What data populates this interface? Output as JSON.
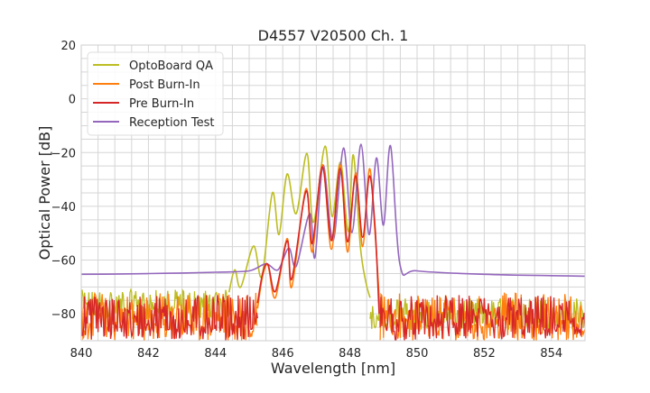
{
  "chart_data": {
    "type": "line",
    "title": "D4557 V20500 Ch. 1",
    "xlabel": "Wavelength [nm]",
    "ylabel": "Optical Power [dB]",
    "xlim": [
      840,
      855
    ],
    "ylim": [
      -90,
      20
    ],
    "xticks": [
      "840",
      "842",
      "844",
      "846",
      "848",
      "850",
      "852",
      "854"
    ],
    "yticks": [
      "20",
      "0",
      "−20",
      "−40",
      "−60",
      "−80"
    ],
    "grid": "major and minor",
    "legend_position": "top-left",
    "series": [
      {
        "name": "OptoBoard QA",
        "color": "#bcbd22",
        "noise": [
          {
            "x": [
              840,
              844.4
            ],
            "y": [
              -82,
              -71
            ]
          },
          {
            "x": [
              848.6,
              855
            ],
            "y": [
              -86,
              -74
            ]
          }
        ],
        "points": [
          [
            844.4,
            -72
          ],
          [
            844.57,
            -63.6
          ],
          [
            844.75,
            -70
          ],
          [
            845.13,
            -54.8
          ],
          [
            845.38,
            -66
          ],
          [
            845.69,
            -35
          ],
          [
            845.89,
            -50.5
          ],
          [
            846.13,
            -28
          ],
          [
            846.4,
            -42.7
          ],
          [
            846.72,
            -20.3
          ],
          [
            846.91,
            -46
          ],
          [
            847.26,
            -17.6
          ],
          [
            847.47,
            -43.8
          ],
          [
            847.72,
            -23.6
          ],
          [
            847.95,
            -49.4
          ],
          [
            848.1,
            -20.8
          ],
          [
            848.31,
            -54.8
          ],
          [
            848.47,
            -68
          ],
          [
            848.6,
            -74
          ]
        ]
      },
      {
        "name": "Reception Test",
        "color": "#9467bd",
        "noise": [],
        "points": [
          [
            840,
            -65.3
          ],
          [
            841,
            -65.2
          ],
          [
            842,
            -65
          ],
          [
            843,
            -64.8
          ],
          [
            844,
            -64.5
          ],
          [
            845,
            -64
          ],
          [
            845.5,
            -61.4
          ],
          [
            845.86,
            -63.6
          ],
          [
            846.18,
            -55.5
          ],
          [
            846.4,
            -62.3
          ],
          [
            846.8,
            -42.7
          ],
          [
            846.96,
            -59
          ],
          [
            847.2,
            -24.7
          ],
          [
            847.5,
            -52.7
          ],
          [
            847.81,
            -18.3
          ],
          [
            848.06,
            -49.8
          ],
          [
            848.33,
            -16.9
          ],
          [
            848.57,
            -50.5
          ],
          [
            848.79,
            -22
          ],
          [
            849.0,
            -47
          ],
          [
            849.21,
            -17.5
          ],
          [
            849.49,
            -61.6
          ],
          [
            850,
            -64
          ],
          [
            852,
            -65.3
          ],
          [
            854,
            -65.8
          ],
          [
            855,
            -66
          ]
        ]
      },
      {
        "name": "Post Burn-In",
        "color": "#ff7f0e",
        "noise": [
          {
            "x": [
              840,
              845.25
            ],
            "y": [
              -90,
              -72
            ]
          },
          {
            "x": [
              848.9,
              855
            ],
            "y": [
              -90,
              -72
            ]
          }
        ],
        "points": [
          [
            845.25,
            -78
          ],
          [
            845.4,
            -66
          ],
          [
            845.56,
            -62
          ],
          [
            845.78,
            -74
          ],
          [
            846.13,
            -52
          ],
          [
            846.27,
            -70
          ],
          [
            846.69,
            -33.5
          ],
          [
            846.88,
            -57
          ],
          [
            847.18,
            -24.5
          ],
          [
            847.45,
            -56
          ],
          [
            847.71,
            -24.5
          ],
          [
            847.93,
            -57
          ],
          [
            848.17,
            -27.5
          ],
          [
            848.38,
            -55
          ],
          [
            848.58,
            -26
          ],
          [
            848.75,
            -50
          ],
          [
            848.9,
            -80
          ]
        ]
      },
      {
        "name": "Pre Burn-In",
        "color": "#d62728",
        "noise": [
          {
            "x": [
              840,
              845.25
            ],
            "y": [
              -90,
              -73
            ]
          },
          {
            "x": [
              848.9,
              855
            ],
            "y": [
              -90,
              -73
            ]
          }
        ],
        "points": [
          [
            845.25,
            -76
          ],
          [
            845.4,
            -65
          ],
          [
            845.56,
            -61.6
          ],
          [
            845.78,
            -71.7
          ],
          [
            846.13,
            -52.8
          ],
          [
            846.27,
            -67
          ],
          [
            846.69,
            -34.4
          ],
          [
            846.88,
            -53.8
          ],
          [
            847.18,
            -25.3
          ],
          [
            847.45,
            -52.8
          ],
          [
            847.71,
            -25.9
          ],
          [
            847.93,
            -53.2
          ],
          [
            848.17,
            -28.7
          ],
          [
            848.38,
            -51.5
          ],
          [
            848.58,
            -28.7
          ],
          [
            848.75,
            -48
          ],
          [
            848.87,
            -80
          ]
        ]
      }
    ],
    "legend_order": [
      "OptoBoard QA",
      "Post Burn-In",
      "Pre Burn-In",
      "Reception Test"
    ]
  }
}
